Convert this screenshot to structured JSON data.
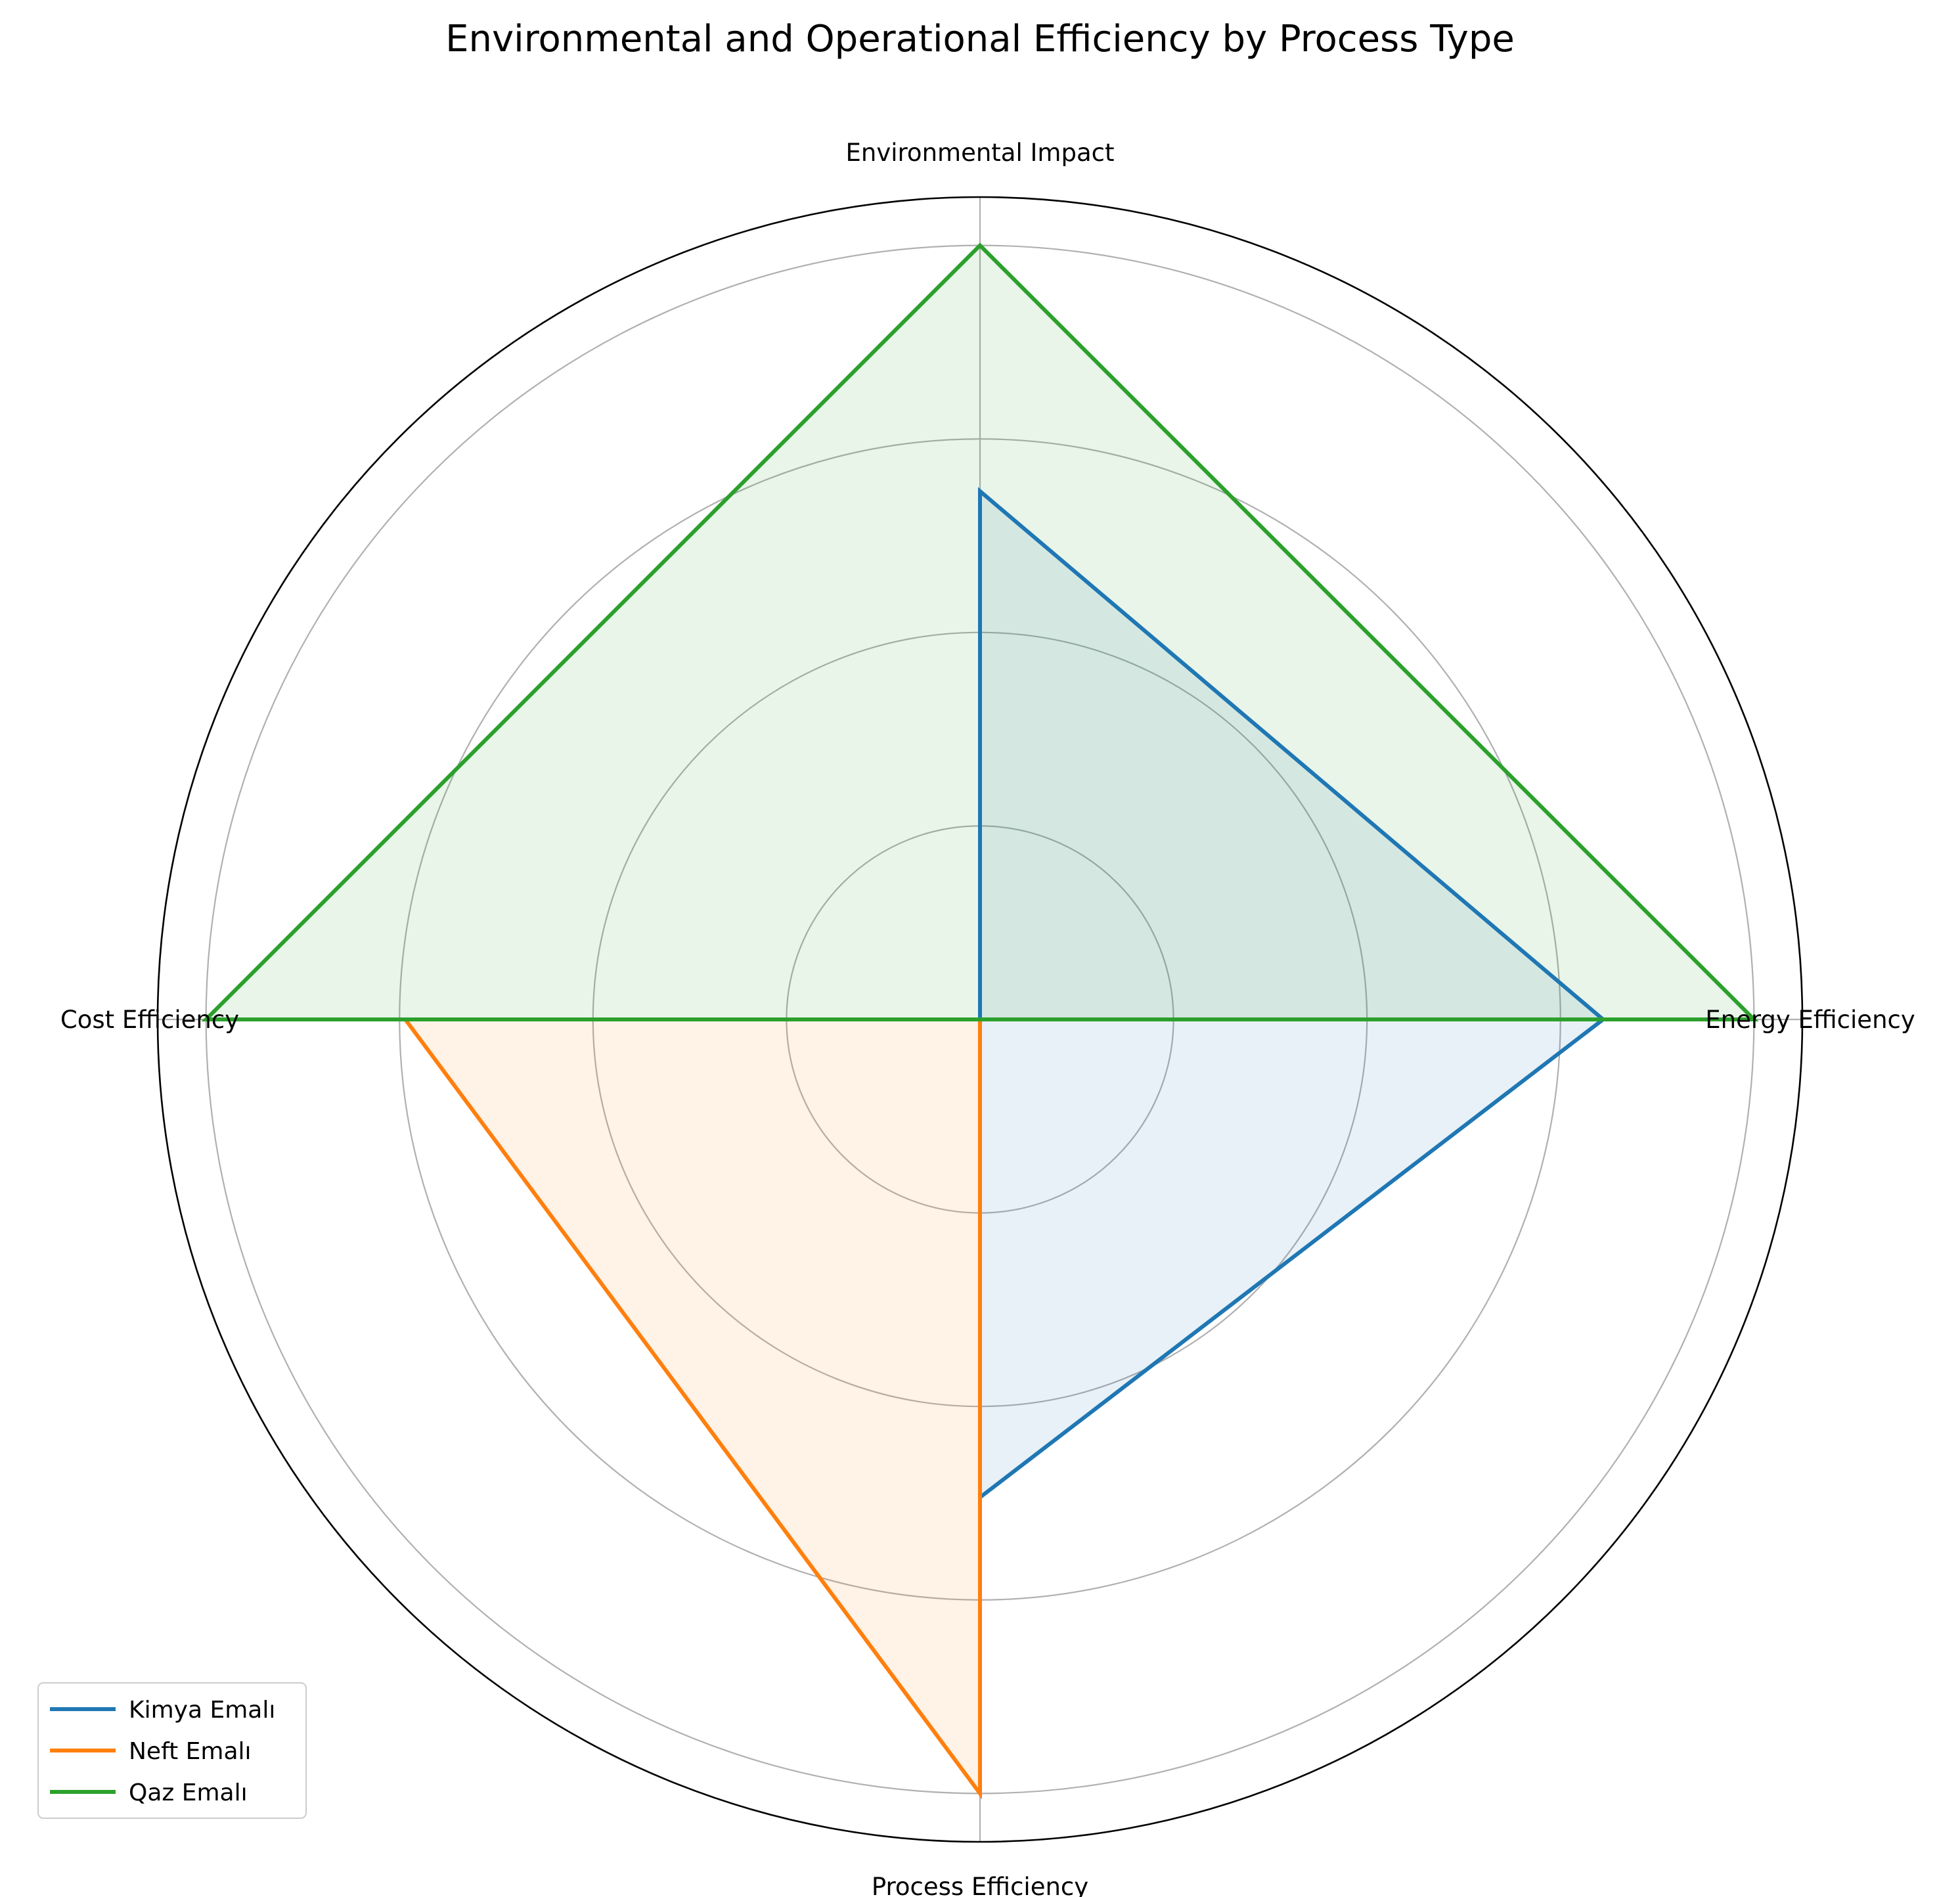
{
  "chart_data": {
    "type": "radar",
    "title": "Environmental and Operational Efficiency by Process Type",
    "categories": [
      "Environmental Impact",
      "Energy Efficiency",
      "Process Efficiency",
      "Cost Efficiency"
    ],
    "rlim": [
      0,
      4.25
    ],
    "grid": true,
    "legend_position": "lower-left",
    "series": [
      {
        "name": "Kimya Emalı",
        "color": "#1f77b4",
        "values": [
          2.73,
          3.22,
          2.47,
          0
        ]
      },
      {
        "name": "Neft Emalı",
        "color": "#ff7f0e",
        "values": [
          0,
          0,
          4.0,
          2.97
        ]
      },
      {
        "name": "Qaz Emalı",
        "color": "#2ca02c",
        "values": [
          4.0,
          4.0,
          0,
          4.0
        ]
      }
    ]
  }
}
